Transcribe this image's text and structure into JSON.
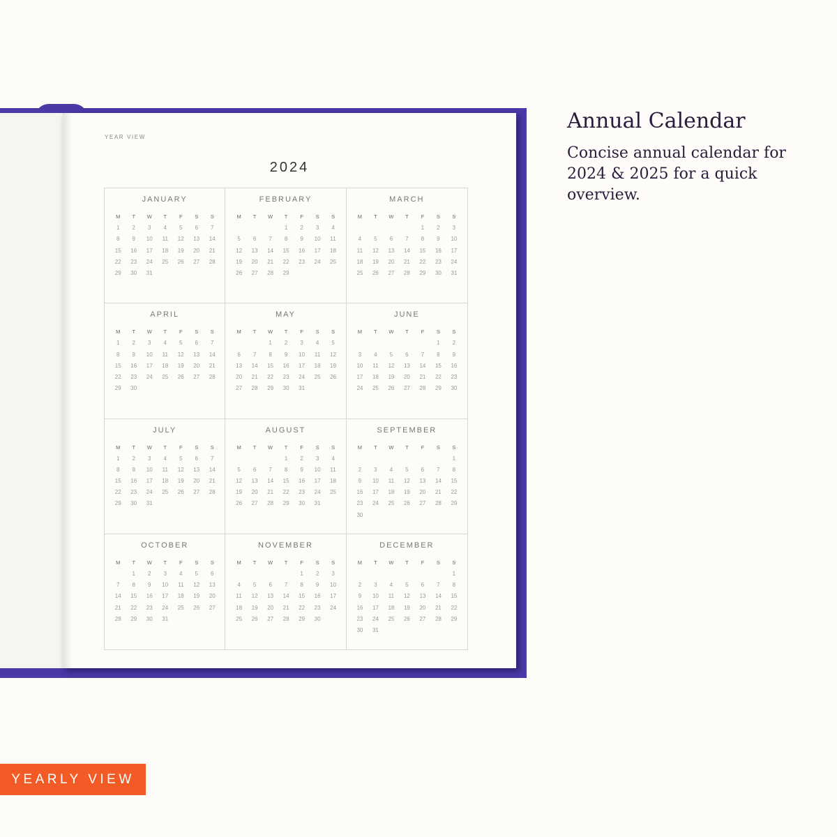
{
  "page": {
    "label": "YEAR VIEW",
    "year": "2024",
    "weekdays": [
      "M",
      "T",
      "W",
      "T",
      "F",
      "S",
      "S"
    ],
    "months": [
      {
        "name": "JANUARY",
        "first_weekday": 0,
        "days": 31
      },
      {
        "name": "FEBRUARY",
        "first_weekday": 3,
        "days": 29
      },
      {
        "name": "MARCH",
        "first_weekday": 4,
        "days": 31
      },
      {
        "name": "APRIL",
        "first_weekday": 0,
        "days": 30
      },
      {
        "name": "MAY",
        "first_weekday": 2,
        "days": 31
      },
      {
        "name": "JUNE",
        "first_weekday": 5,
        "days": 30
      },
      {
        "name": "JULY",
        "first_weekday": 0,
        "days": 31
      },
      {
        "name": "AUGUST",
        "first_weekday": 3,
        "days": 31
      },
      {
        "name": "SEPTEMBER",
        "first_weekday": 6,
        "days": 30
      },
      {
        "name": "OCTOBER",
        "first_weekday": 1,
        "days": 31
      },
      {
        "name": "NOVEMBER",
        "first_weekday": 4,
        "days": 30
      },
      {
        "name": "DECEMBER",
        "first_weekday": 6,
        "days": 31
      }
    ]
  },
  "feature": {
    "title": "Annual Calendar",
    "description": "Concise annual calendar for 2024 & 2025 for a quick overview."
  },
  "badge": {
    "label": "YEARLY VIEW"
  },
  "colors": {
    "cover": "#4a3aa6",
    "badge": "#f25a26",
    "text": "#2b1c3c"
  }
}
